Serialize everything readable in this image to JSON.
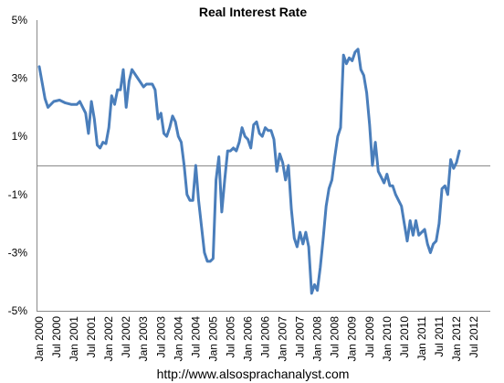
{
  "chart_data": {
    "type": "line",
    "title": "Real Interest Rate",
    "xlabel": "",
    "ylabel": "",
    "ylim": [
      -5,
      5
    ],
    "y_ticks": [
      "5%",
      "3%",
      "1%",
      "-1%",
      "-3%",
      "-5%"
    ],
    "x_ticks": [
      "Jan 2000",
      "Jul 2000",
      "Jan 2001",
      "Jul 2001",
      "Jan 2002",
      "Jul 2002",
      "Jan 2003",
      "Jul 2003",
      "Jan 2004",
      "Jul 2004",
      "Jan 2005",
      "Jul 2005",
      "Jan 2006",
      "Jul 2006",
      "Jan 2007",
      "Jul 2007",
      "Jan 2008",
      "Jul 2008",
      "Jan 2009",
      "Jul 2009",
      "Jan 2010",
      "Jul 2010",
      "Jan 2011",
      "Jul 2011",
      "Jan 2012",
      "Jul 2012"
    ],
    "grid": false,
    "zero_line": true,
    "series": [
      {
        "color": "#4A7EBB",
        "points": [
          [
            "2000-01",
            3.4
          ],
          [
            "2000-03",
            2.3
          ],
          [
            "2000-04",
            2.0
          ],
          [
            "2000-06",
            2.2
          ],
          [
            "2000-08",
            2.25
          ],
          [
            "2000-10",
            2.15
          ],
          [
            "2000-12",
            2.1
          ],
          [
            "2001-02",
            2.1
          ],
          [
            "2001-03",
            2.2
          ],
          [
            "2001-05",
            1.8
          ],
          [
            "2001-06",
            1.1
          ],
          [
            "2001-07",
            2.2
          ],
          [
            "2001-08",
            1.6
          ],
          [
            "2001-09",
            0.7
          ],
          [
            "2001-10",
            0.6
          ],
          [
            "2001-11",
            0.8
          ],
          [
            "2001-12",
            0.75
          ],
          [
            "2002-01",
            1.3
          ],
          [
            "2002-02",
            2.4
          ],
          [
            "2002-03",
            2.1
          ],
          [
            "2002-04",
            2.6
          ],
          [
            "2002-05",
            2.6
          ],
          [
            "2002-06",
            3.3
          ],
          [
            "2002-07",
            2.0
          ],
          [
            "2002-08",
            2.9
          ],
          [
            "2002-09",
            3.3
          ],
          [
            "2002-11",
            3.0
          ],
          [
            "2003-01",
            2.7
          ],
          [
            "2003-02",
            2.8
          ],
          [
            "2003-04",
            2.8
          ],
          [
            "2003-05",
            2.6
          ],
          [
            "2003-06",
            1.6
          ],
          [
            "2003-07",
            1.8
          ],
          [
            "2003-08",
            1.1
          ],
          [
            "2003-09",
            1.0
          ],
          [
            "2003-10",
            1.3
          ],
          [
            "2003-11",
            1.7
          ],
          [
            "2003-12",
            1.5
          ],
          [
            "2004-01",
            1.0
          ],
          [
            "2004-02",
            0.8
          ],
          [
            "2004-03",
            0.0
          ],
          [
            "2004-04",
            -1.0
          ],
          [
            "2004-05",
            -1.2
          ],
          [
            "2004-06",
            -1.2
          ],
          [
            "2004-07",
            0.0
          ],
          [
            "2004-08",
            -1.2
          ],
          [
            "2004-09",
            -2.1
          ],
          [
            "2004-10",
            -3.0
          ],
          [
            "2004-11",
            -3.3
          ],
          [
            "2004-12",
            -3.3
          ],
          [
            "2005-01",
            -3.2
          ],
          [
            "2005-02",
            -0.5
          ],
          [
            "2005-03",
            0.3
          ],
          [
            "2005-04",
            -1.6
          ],
          [
            "2005-05",
            -0.5
          ],
          [
            "2005-06",
            0.5
          ],
          [
            "2005-07",
            0.5
          ],
          [
            "2005-08",
            0.6
          ],
          [
            "2005-09",
            0.5
          ],
          [
            "2005-10",
            0.8
          ],
          [
            "2005-11",
            1.3
          ],
          [
            "2005-12",
            1.0
          ],
          [
            "2006-01",
            0.9
          ],
          [
            "2006-02",
            0.6
          ],
          [
            "2006-03",
            1.4
          ],
          [
            "2006-04",
            1.5
          ],
          [
            "2006-05",
            1.1
          ],
          [
            "2006-06",
            1.0
          ],
          [
            "2006-07",
            1.3
          ],
          [
            "2006-08",
            1.2
          ],
          [
            "2006-09",
            1.2
          ],
          [
            "2006-10",
            0.9
          ],
          [
            "2006-11",
            -0.2
          ],
          [
            "2006-12",
            0.4
          ],
          [
            "2007-01",
            0.1
          ],
          [
            "2007-02",
            -0.5
          ],
          [
            "2007-03",
            0.0
          ],
          [
            "2007-04",
            -1.5
          ],
          [
            "2007-05",
            -2.5
          ],
          [
            "2007-06",
            -2.8
          ],
          [
            "2007-07",
            -2.3
          ],
          [
            "2007-08",
            -2.7
          ],
          [
            "2007-09",
            -2.3
          ],
          [
            "2007-10",
            -2.8
          ],
          [
            "2007-11",
            -4.4
          ],
          [
            "2007-12",
            -4.1
          ],
          [
            "2008-01",
            -4.3
          ],
          [
            "2008-02",
            -3.5
          ],
          [
            "2008-03",
            -2.5
          ],
          [
            "2008-04",
            -1.4
          ],
          [
            "2008-05",
            -0.8
          ],
          [
            "2008-06",
            -0.5
          ],
          [
            "2008-07",
            0.3
          ],
          [
            "2008-08",
            1.0
          ],
          [
            "2008-09",
            1.3
          ],
          [
            "2008-10",
            3.8
          ],
          [
            "2008-11",
            3.5
          ],
          [
            "2008-12",
            3.7
          ],
          [
            "2009-01",
            3.6
          ],
          [
            "2009-02",
            3.9
          ],
          [
            "2009-03",
            4.0
          ],
          [
            "2009-04",
            3.3
          ],
          [
            "2009-05",
            3.1
          ],
          [
            "2009-06",
            2.5
          ],
          [
            "2009-07",
            1.4
          ],
          [
            "2009-08",
            0.0
          ],
          [
            "2009-09",
            0.8
          ],
          [
            "2009-10",
            -0.2
          ],
          [
            "2009-11",
            -0.4
          ],
          [
            "2009-12",
            -0.6
          ],
          [
            "2010-01",
            -0.3
          ],
          [
            "2010-02",
            -0.7
          ],
          [
            "2010-03",
            -0.7
          ],
          [
            "2010-04",
            -1.0
          ],
          [
            "2010-05",
            -1.2
          ],
          [
            "2010-06",
            -1.4
          ],
          [
            "2010-07",
            -2.0
          ],
          [
            "2010-08",
            -2.6
          ],
          [
            "2010-09",
            -1.9
          ],
          [
            "2010-10",
            -2.4
          ],
          [
            "2010-11",
            -1.9
          ],
          [
            "2010-12",
            -2.4
          ],
          [
            "2011-01",
            -2.3
          ],
          [
            "2011-02",
            -2.2
          ],
          [
            "2011-03",
            -2.7
          ],
          [
            "2011-04",
            -3.0
          ],
          [
            "2011-05",
            -2.7
          ],
          [
            "2011-06",
            -2.6
          ],
          [
            "2011-07",
            -2.0
          ],
          [
            "2011-08",
            -0.8
          ],
          [
            "2011-09",
            -0.7
          ],
          [
            "2011-10",
            -1.0
          ],
          [
            "2011-11",
            0.2
          ],
          [
            "2011-12",
            -0.1
          ],
          [
            "2012-01",
            0.1
          ],
          [
            "2012-02",
            0.5
          ]
        ]
      }
    ]
  },
  "footer": {
    "url": "http://www.alsosprachanalyst.com"
  }
}
